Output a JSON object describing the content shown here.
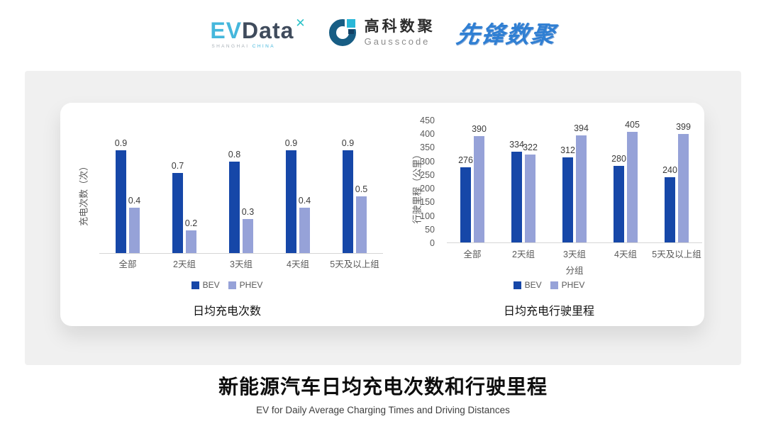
{
  "header": {
    "evdata_logo": {
      "part1": "EV",
      "part2": "Data",
      "sparkle": "✕",
      "sub1": "SHANGHAI",
      "sub2": "CHINA"
    },
    "gausscode_logo": {
      "cn": "高科数聚",
      "en": "Gausscode"
    },
    "pioneer_logo": "先锋数聚"
  },
  "colors": {
    "bev": "#1647A8",
    "phev": "#96A2D8",
    "panel_bg": "#f0f0f0",
    "baseline": "#d6d6d6"
  },
  "chart_data": [
    {
      "type": "bar",
      "title": "日均充电次数",
      "categories": [
        "全部",
        "2天组",
        "3天组",
        "4天组",
        "5天及以上组"
      ],
      "series": [
        {
          "name": "BEV",
          "color": "#1647A8",
          "values": [
            0.9,
            0.7,
            0.8,
            0.9,
            0.9
          ]
        },
        {
          "name": "PHEV",
          "color": "#96A2D8",
          "values": [
            0.4,
            0.2,
            0.3,
            0.4,
            0.5
          ]
        }
      ],
      "xlabel": "",
      "ylabel": "充电次数（次）",
      "ylim": [
        0,
        1.2
      ],
      "yticks": [],
      "grid": false,
      "legend_position": "bottom"
    },
    {
      "type": "bar",
      "title": "日均充电行驶里程",
      "categories": [
        "全部",
        "2天组",
        "3天组",
        "4天组",
        "5天及以上组"
      ],
      "series": [
        {
          "name": "BEV",
          "color": "#1647A8",
          "values": [
            276,
            334,
            312,
            280,
            240
          ]
        },
        {
          "name": "PHEV",
          "color": "#96A2D8",
          "values": [
            390,
            322,
            394,
            405,
            399
          ]
        }
      ],
      "xlabel": "分组",
      "ylabel": "行驶里程（公里）",
      "ylim": [
        0,
        450
      ],
      "yticks": [
        0,
        50,
        100,
        150,
        200,
        250,
        300,
        350,
        400,
        450
      ],
      "grid": false,
      "legend_position": "bottom"
    }
  ],
  "footer": {
    "title": "新能源汽车日均充电次数和行驶里程",
    "subtitle": "EV for Daily Average Charging Times and Driving Distances"
  }
}
